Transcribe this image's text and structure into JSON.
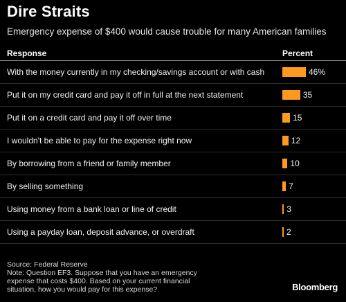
{
  "title": "Dire Straits",
  "subtitle": "Emergency expense of $400 would cause trouble for many American families",
  "headers": {
    "response": "Response",
    "percent": "Percent"
  },
  "chart_data": {
    "type": "bar",
    "orientation": "horizontal",
    "categories": [
      "With the money currently in my checking/savings account or with cash",
      "Put it on my credit card and pay it off in full at the next statement",
      "Put it on a credit card and pay it off over time",
      "I wouldn't be able to pay for the expense right now",
      "By borrowing from a friend or family member",
      "By selling something",
      "Using money from a bank loan or line of credit",
      "Using a payday loan, deposit advance, or overdraft"
    ],
    "values": [
      46,
      35,
      15,
      12,
      10,
      7,
      3,
      2
    ],
    "value_labels": [
      "46%",
      "35",
      "15",
      "12",
      "10",
      "7",
      "3",
      "2"
    ],
    "color": "#ff9a1f",
    "xlim": [
      0,
      46
    ]
  },
  "footer": {
    "source": "Source: Federal Reserve",
    "note": "Note: Question EF3. Suppose that you have an emergency expense that costs $400. Based on your current financial situation, how you would pay for this expense?"
  },
  "brand": "Bloomberg"
}
